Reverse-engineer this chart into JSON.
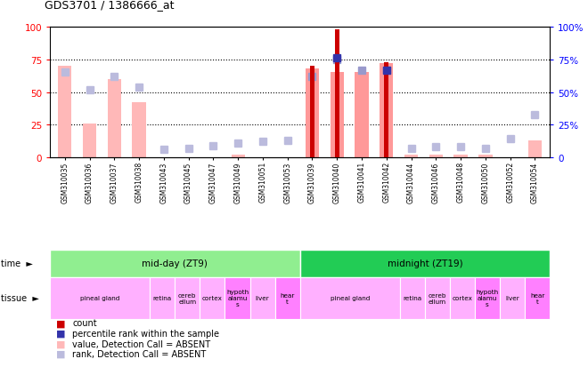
{
  "title": "GDS3701 / 1386666_at",
  "samples": [
    "GSM310035",
    "GSM310036",
    "GSM310037",
    "GSM310038",
    "GSM310043",
    "GSM310045",
    "GSM310047",
    "GSM310049",
    "GSM310051",
    "GSM310053",
    "GSM310039",
    "GSM310040",
    "GSM310041",
    "GSM310042",
    "GSM310044",
    "GSM310046",
    "GSM310048",
    "GSM310050",
    "GSM310052",
    "GSM310054"
  ],
  "value_bars": [
    70,
    26,
    60,
    42,
    0,
    0,
    0,
    2,
    0,
    0,
    68,
    65,
    65,
    72,
    2,
    2,
    2,
    2,
    0,
    13
  ],
  "count_bars": [
    0,
    0,
    0,
    0,
    0,
    0,
    0,
    0,
    0,
    0,
    70,
    98,
    0,
    73,
    0,
    0,
    0,
    0,
    0,
    0
  ],
  "rank_squares": [
    65,
    52,
    62,
    54,
    6,
    7,
    9,
    11,
    12,
    13,
    62,
    75,
    67,
    67,
    7,
    8,
    8,
    7,
    14,
    33
  ],
  "percentile_squares": [
    0,
    0,
    0,
    0,
    0,
    0,
    0,
    0,
    0,
    0,
    0,
    76,
    0,
    67,
    0,
    0,
    0,
    0,
    0,
    0
  ],
  "value_absent": [
    true,
    true,
    true,
    true,
    true,
    true,
    true,
    true,
    true,
    true,
    false,
    false,
    false,
    false,
    true,
    true,
    true,
    true,
    true,
    true
  ],
  "rank_absent": [
    true,
    true,
    true,
    true,
    true,
    true,
    true,
    true,
    true,
    true,
    false,
    false,
    false,
    false,
    true,
    true,
    true,
    true,
    true,
    true
  ],
  "time_groups": [
    {
      "label": "mid-day (ZT9)",
      "start": 0,
      "end": 10,
      "color": "#90EE90"
    },
    {
      "label": "midnight (ZT19)",
      "start": 10,
      "end": 20,
      "color": "#22CC55"
    }
  ],
  "tissue_groups": [
    {
      "label": "pineal gland",
      "start": 0,
      "end": 4,
      "color": "#FFB0FF"
    },
    {
      "label": "retina",
      "start": 4,
      "end": 5,
      "color": "#FFB0FF"
    },
    {
      "label": "cereb\nellum",
      "start": 5,
      "end": 6,
      "color": "#FFB0FF"
    },
    {
      "label": "cortex",
      "start": 6,
      "end": 7,
      "color": "#FFB0FF"
    },
    {
      "label": "hypoth\nalamu\ns",
      "start": 7,
      "end": 8,
      "color": "#FF80FF"
    },
    {
      "label": "liver",
      "start": 8,
      "end": 9,
      "color": "#FFB0FF"
    },
    {
      "label": "hear\nt",
      "start": 9,
      "end": 10,
      "color": "#FF80FF"
    },
    {
      "label": "pineal gland",
      "start": 10,
      "end": 14,
      "color": "#FFB0FF"
    },
    {
      "label": "retina",
      "start": 14,
      "end": 15,
      "color": "#FFB0FF"
    },
    {
      "label": "cereb\nellum",
      "start": 15,
      "end": 16,
      "color": "#FFB0FF"
    },
    {
      "label": "cortex",
      "start": 16,
      "end": 17,
      "color": "#FFB0FF"
    },
    {
      "label": "hypoth\nalamu\ns",
      "start": 17,
      "end": 18,
      "color": "#FF80FF"
    },
    {
      "label": "liver",
      "start": 18,
      "end": 19,
      "color": "#FFB0FF"
    },
    {
      "label": "hear\nt",
      "start": 19,
      "end": 20,
      "color": "#FF80FF"
    }
  ],
  "color_count": "#CC0000",
  "color_percentile": "#3333AA",
  "color_value_present": "#FF9999",
  "color_value_absent": "#FFB8B8",
  "color_rank_present": "#9999CC",
  "color_rank_absent": "#BBBBDD",
  "yticks": [
    0,
    25,
    50,
    75,
    100
  ]
}
